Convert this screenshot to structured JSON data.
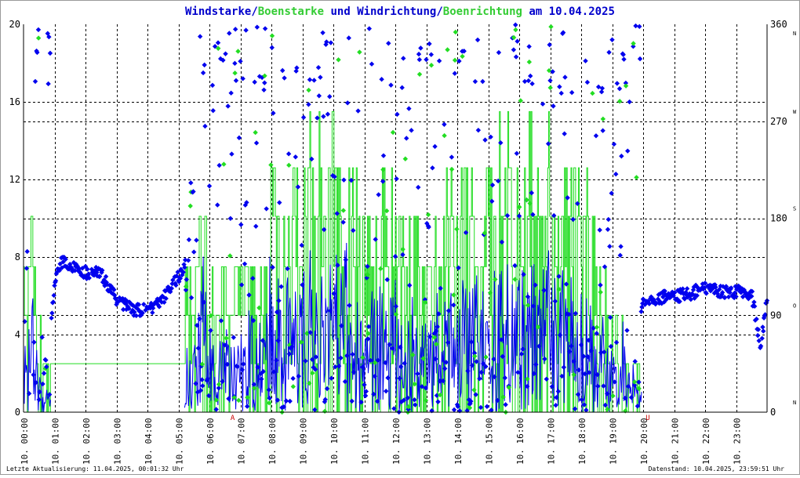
{
  "title": {
    "parts": [
      {
        "text": "Windstarke",
        "color": "#0000cc"
      },
      {
        "text": "/",
        "color": "#0000cc"
      },
      {
        "text": "Boenstarke",
        "color": "#33cc33"
      },
      {
        "text": " und ",
        "color": "#0000cc"
      },
      {
        "text": "Windrichtung",
        "color": "#0000cc"
      },
      {
        "text": "/",
        "color": "#0000cc"
      },
      {
        "text": "Boenrichtung",
        "color": "#33cc33"
      },
      {
        "text": " am 10.04.2025",
        "color": "#0000cc"
      }
    ]
  },
  "footer": {
    "left": "Letzte Aktualisierung: 11.04.2025, 00:01:32 Uhr",
    "right": "Datenstand: 10.04.2025, 23:59:51 Uhr"
  },
  "markers": {
    "sunrise": {
      "label": "A",
      "hour": 6.75,
      "color": "#cc0000"
    },
    "sunset": {
      "label": "U",
      "hour": 20.15,
      "color": "#cc0000"
    }
  },
  "chart_data": {
    "type": "line",
    "date": "10.04.2025",
    "grid": true,
    "x_ticks": [
      "10. 00:00",
      "10. 01:00",
      "10. 02:00",
      "10. 03:00",
      "10. 04:00",
      "10. 05:00",
      "10. 06:00",
      "10. 07:00",
      "10. 08:00",
      "10. 09:00",
      "10. 10:00",
      "10. 11:00",
      "10. 12:00",
      "10. 13:00",
      "10. 14:00",
      "10. 15:00",
      "10. 16:00",
      "10. 17:00",
      "10. 18:00",
      "10. 19:00",
      "10. 20:00",
      "10. 21:00",
      "10. 22:00",
      "10. 23:00"
    ],
    "xlim_hours": [
      0,
      24
    ],
    "y_left": {
      "ticks": [
        "0",
        "4",
        "8",
        "12",
        "16",
        "20"
      ],
      "ylim": [
        0,
        20
      ]
    },
    "y_right": {
      "ticks": [
        "0",
        "90",
        "180",
        "270",
        "360"
      ],
      "ylim": [
        0,
        360
      ],
      "compass": [
        "N",
        "O",
        "S",
        "W",
        "N"
      ]
    },
    "colors": {
      "wind": "#0000ee",
      "gust": "#22dd22"
    },
    "gust_envelope": [
      [
        0.0,
        10.1
      ],
      [
        0.2,
        10.1
      ],
      [
        0.3,
        13.0
      ],
      [
        0.4,
        7.5
      ],
      [
        0.6,
        5.0
      ],
      [
        0.7,
        3.0
      ],
      [
        0.85,
        3.0
      ],
      [
        1.0,
        7.5
      ],
      [
        1.2,
        8.0
      ],
      [
        1.5,
        7.8
      ],
      [
        2.0,
        7.2
      ],
      [
        2.5,
        7.2
      ],
      [
        3.0,
        7.0
      ],
      [
        3.3,
        6.0
      ],
      [
        3.6,
        5.5
      ],
      [
        4.0,
        5.5
      ],
      [
        4.4,
        5.6
      ],
      [
        4.8,
        6.5
      ],
      [
        5.1,
        7.5
      ],
      [
        5.3,
        10.1
      ],
      [
        5.5,
        10.1
      ],
      [
        5.7,
        15.5
      ],
      [
        6.0,
        10.1
      ],
      [
        6.5,
        10.1
      ],
      [
        7.0,
        10.1
      ],
      [
        7.5,
        10.1
      ],
      [
        8.0,
        15.5
      ],
      [
        8.5,
        15.5
      ],
      [
        9.0,
        16.0
      ],
      [
        9.5,
        18.0
      ],
      [
        10.0,
        17.5
      ],
      [
        10.5,
        15.5
      ],
      [
        11.0,
        12.5
      ],
      [
        11.5,
        15.5
      ],
      [
        12.0,
        13.0
      ],
      [
        12.5,
        12.5
      ],
      [
        13.0,
        10.1
      ],
      [
        13.5,
        12.5
      ],
      [
        14.0,
        15.5
      ],
      [
        14.5,
        15.5
      ],
      [
        15.0,
        16.0
      ],
      [
        15.5,
        18.0
      ],
      [
        16.0,
        15.5
      ],
      [
        16.5,
        18.0
      ],
      [
        17.0,
        17.0
      ],
      [
        17.5,
        15.5
      ],
      [
        18.0,
        15.5
      ],
      [
        18.5,
        10.1
      ],
      [
        19.0,
        7.5
      ],
      [
        19.3,
        6.5
      ],
      [
        19.6,
        5.0
      ],
      [
        19.9,
        3.5
      ]
    ],
    "wind_direction_trend_deg": [
      [
        0.0,
        60
      ],
      [
        0.2,
        200
      ],
      [
        0.5,
        120
      ],
      [
        0.8,
        50
      ],
      [
        1.0,
        120
      ],
      [
        1.2,
        140
      ],
      [
        1.5,
        135
      ],
      [
        2.0,
        130
      ],
      [
        2.5,
        128
      ],
      [
        3.0,
        105
      ],
      [
        3.5,
        95
      ],
      [
        4.0,
        95
      ],
      [
        4.5,
        105
      ],
      [
        5.0,
        125
      ],
      [
        5.3,
        140
      ],
      [
        19.2,
        70
      ],
      [
        19.6,
        85
      ],
      [
        20.0,
        100
      ],
      [
        20.5,
        106
      ],
      [
        21.0,
        108
      ],
      [
        21.5,
        110
      ],
      [
        22.0,
        115
      ],
      [
        22.5,
        112
      ],
      [
        23.0,
        112
      ],
      [
        23.5,
        110
      ],
      [
        23.8,
        60
      ],
      [
        24.0,
        105
      ]
    ]
  }
}
